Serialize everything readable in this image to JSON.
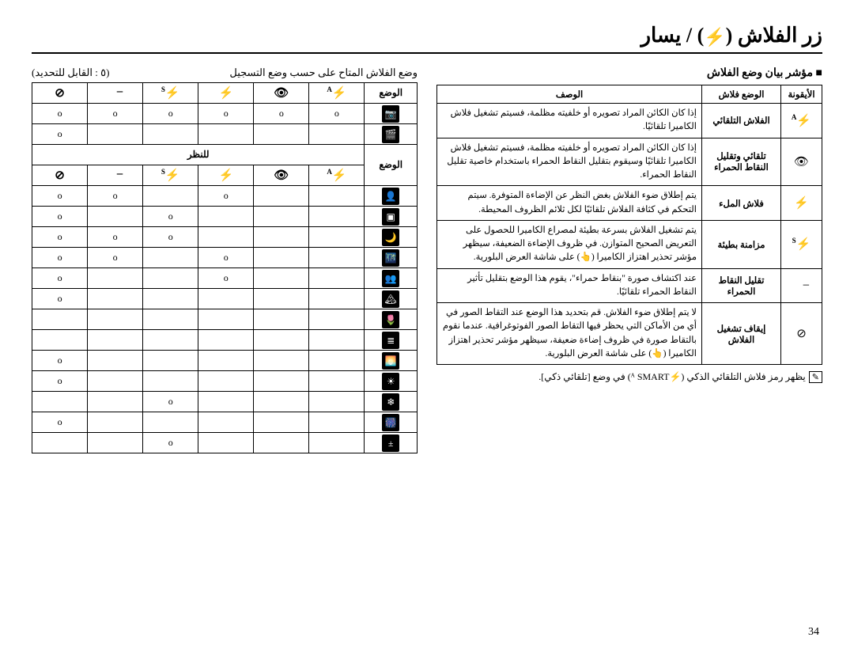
{
  "title_pre": "زر الفلاش (",
  "title_post": ") / يسار",
  "right_heading": "■ مؤشر بيان وضع الفلاش",
  "desc_table": {
    "head_icon": "الأيقونة",
    "head_mode": "الوضع فلاش",
    "head_desc": "الوصف",
    "rows": [
      {
        "icon": "flash-a",
        "mode": "الفلاش التلقائي",
        "desc": "إذا كان الكائن المراد تصويره أو خلفيته مظلمة، فسيتم تشغيل فلاش الكاميرا تلقائيًا."
      },
      {
        "icon": "eye",
        "mode": "تلقائي وتقليل النقاط الحمراء",
        "desc": "إذا كان الكائن المراد تصويره أو خلفيته مظلمة، فسيتم تشغيل فلاش الكاميرا تلقائيًا وسيقوم بتقليل النقاط الحمراء باستخدام خاصية تقليل النقاط الحمراء."
      },
      {
        "icon": "flash-fill",
        "mode": "فلاش الملء",
        "desc": "يتم إطلاق ضوء الفلاش بغض النظر عن الإضاءة المتوفرة. سيتم التحكم في كثافة الفلاش تلقائيًا لكل ثلائم الظروف المحيطة."
      },
      {
        "icon": "flash-s",
        "mode": "مزامنة بطيئة",
        "desc": "يتم تشغيل الفلاش بسرعة بطيئة لمصراع الكاميرا للحصول على التعريض الصحيح المتوازن. في ظروف الإضاءة الضعيفة، سيظهر مؤشر تحذير اهتزاز الكاميرا (👆) على شاشة العرض البلورية."
      },
      {
        "icon": "eye-slash",
        "mode": "تقليل النقاط الحمراء",
        "desc": "عند اكتشاف صورة \"بنقاط حمراء\"، يقوم هذا الوضع بتقليل تأثير النقاط الحمراء تلقائيًا."
      },
      {
        "icon": "flash-off",
        "mode": "إيقاف تشغيل الفلاش",
        "desc": "لا يتم إطلاق ضوء الفلاش. قم بتحديد هذا الوضع عند التقاط الصور في أي من الأماكن التي يحظر فيها التقاط الصور الفوتوغرافية. عندما نقوم بالتقاط صورة في ظروف إضاءة ضعيفة، سيظهر مؤشر تحذير اهتزاز الكاميرا (👆) على شاشة العرض البلورية."
      }
    ]
  },
  "footnote_text": "يظهر رمز فلاش التلقائي الذكي (⚡ᴬ SMART) في وضع [تلقائي ذكي].",
  "avail_head_right": "وضع الفلاش المتاح على حسب وضع التسجيل",
  "avail_head_left": "(٥ : القابل للتحديد)",
  "avail": {
    "flash_headers": [
      "flash-a",
      "eye",
      "flash-fill",
      "flash-s",
      "eye-slash",
      "flash-off"
    ],
    "groups": [
      {
        "mode_label": "الوضع",
        "rows": [
          {
            "icon": "auto",
            "o": [
              1,
              1,
              1,
              1,
              1,
              1
            ]
          },
          {
            "icon": "movie",
            "o": [
              0,
              0,
              0,
              0,
              0,
              1
            ]
          }
        ]
      },
      {
        "band_label": "للنظر",
        "mode_label": "الوضع",
        "show_flash_headers": true,
        "rows": [
          {
            "icon": "portrait",
            "o": [
              0,
              0,
              1,
              0,
              1,
              1
            ]
          },
          {
            "icon": "frame",
            "o": [
              0,
              0,
              0,
              1,
              0,
              1
            ]
          },
          {
            "icon": "night",
            "o": [
              0,
              0,
              0,
              1,
              1,
              1
            ]
          },
          {
            "icon": "night-p",
            "o": [
              0,
              0,
              1,
              0,
              1,
              1
            ]
          },
          {
            "icon": "backlight",
            "o": [
              0,
              0,
              1,
              0,
              0,
              1
            ]
          },
          {
            "icon": "landscape",
            "o": [
              0,
              0,
              0,
              0,
              0,
              1
            ]
          },
          {
            "icon": "closeup",
            "o": [
              0,
              0,
              0,
              0,
              0,
              0
            ]
          },
          {
            "icon": "text",
            "o": [
              0,
              0,
              0,
              0,
              0,
              0
            ]
          },
          {
            "icon": "sunset",
            "o": [
              0,
              0,
              0,
              0,
              0,
              1
            ]
          },
          {
            "icon": "dawn",
            "o": [
              0,
              0,
              0,
              0,
              0,
              1
            ]
          },
          {
            "icon": "snow",
            "o": [
              0,
              0,
              0,
              1,
              0,
              0
            ]
          },
          {
            "icon": "fireworks",
            "o": [
              0,
              0,
              0,
              0,
              0,
              1
            ]
          },
          {
            "icon": "ev",
            "o": [
              0,
              0,
              0,
              1,
              0,
              0
            ]
          }
        ]
      }
    ]
  },
  "page_number": "34",
  "mode_glyphs": {
    "auto": "📷",
    "movie": "🎬",
    "portrait": "👤",
    "frame": "▣",
    "night": "🌙",
    "night-p": "🌃",
    "backlight": "👥",
    "landscape": "🏔",
    "closeup": "🌷",
    "text": "≣",
    "sunset": "🌅",
    "dawn": "☀",
    "snow": "❄",
    "fireworks": "🎆",
    "ev": "±"
  },
  "flash_glyphs": {
    "flash-a": {
      "g": "⚡",
      "sup": "A"
    },
    "eye": {
      "g": "👁",
      "sup": ""
    },
    "flash-fill": {
      "g": "⚡",
      "sup": ""
    },
    "flash-s": {
      "g": "⚡",
      "sup": "S"
    },
    "eye-slash": {
      "g": "👁̶",
      "sup": ""
    },
    "flash-off": {
      "g": "⊘",
      "sup": ""
    }
  }
}
